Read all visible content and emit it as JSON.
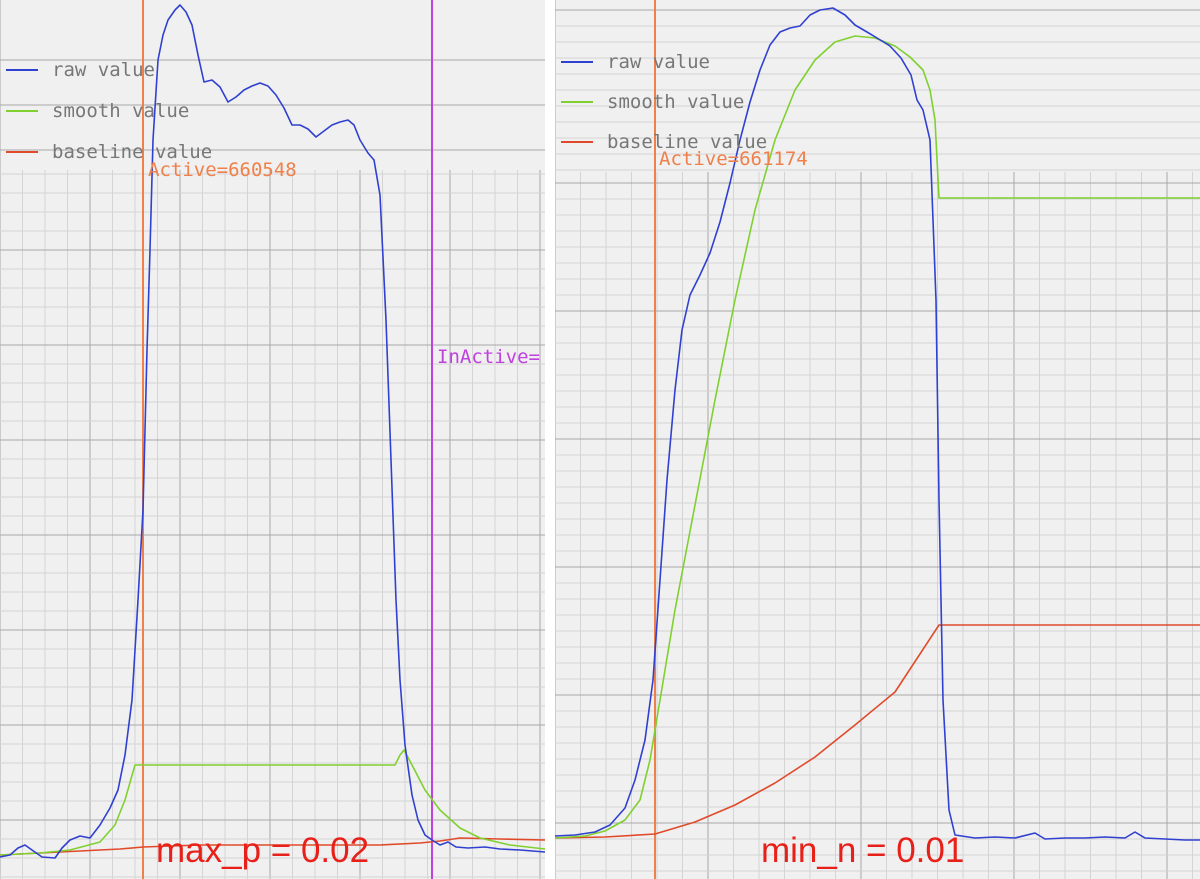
{
  "chart_data": [
    {
      "type": "line",
      "caption": "max_p = 0.02",
      "legend": [
        {
          "name": "raw value",
          "color": "#3040d0"
        },
        {
          "name": "smooth value",
          "color": "#80d030"
        },
        {
          "name": "baseline value",
          "color": "#e04a2a"
        }
      ],
      "markers": [
        {
          "label": "Active=660548",
          "color": "#f0804a"
        },
        {
          "label": "InActive=",
          "color": "#c040e0"
        }
      ]
    },
    {
      "type": "line",
      "caption": "min_n = 0.01",
      "legend": [
        {
          "name": "raw value",
          "color": "#3040d0"
        },
        {
          "name": "smooth value",
          "color": "#80d030"
        },
        {
          "name": "baseline value",
          "color": "#e04a2a"
        }
      ],
      "markers": [
        {
          "label": "Active=661174",
          "color": "#f0804a"
        }
      ]
    }
  ]
}
